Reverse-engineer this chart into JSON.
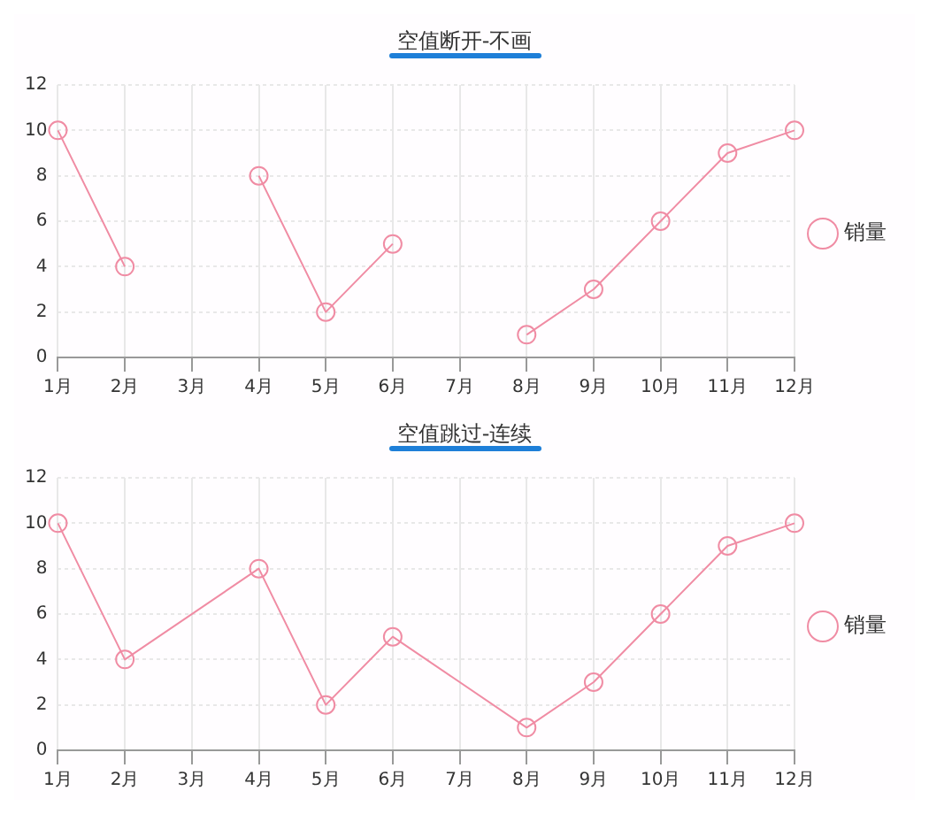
{
  "chart_data": [
    {
      "type": "line",
      "title": "空值断开-不画",
      "categories": [
        "1月",
        "2月",
        "3月",
        "4月",
        "5月",
        "6月",
        "7月",
        "8月",
        "9月",
        "10月",
        "11月",
        "12月"
      ],
      "series": [
        {
          "name": "销量",
          "color": "#f08ca4",
          "values": [
            10,
            4,
            null,
            8,
            2,
            5,
            null,
            1,
            3,
            6,
            9,
            10
          ]
        }
      ],
      "ylim": [
        0,
        12
      ],
      "yticks": [
        0,
        2,
        4,
        6,
        8,
        10,
        12
      ],
      "grid": true,
      "legend": "right",
      "marker": "circle",
      "line_style": "solid"
    },
    {
      "type": "line",
      "title": "空值跳过-连续",
      "categories": [
        "1月",
        "2月",
        "3月",
        "4月",
        "5月",
        "6月",
        "7月",
        "8月",
        "9月",
        "10月",
        "11月",
        "12月"
      ],
      "series": [
        {
          "name": "销量",
          "color": "#f08ca4",
          "x": [
            "1月",
            "2月",
            "4月",
            "5月",
            "6月",
            "8月",
            "9月",
            "10月",
            "11月",
            "12月"
          ],
          "values": [
            10,
            4,
            8,
            2,
            5,
            1,
            3,
            6,
            9,
            10
          ]
        }
      ],
      "ylim": [
        0,
        12
      ],
      "yticks": [
        0,
        2,
        4,
        6,
        8,
        10,
        12
      ],
      "grid": true,
      "legend": "right",
      "marker": "circle",
      "line_style": "solid"
    }
  ]
}
